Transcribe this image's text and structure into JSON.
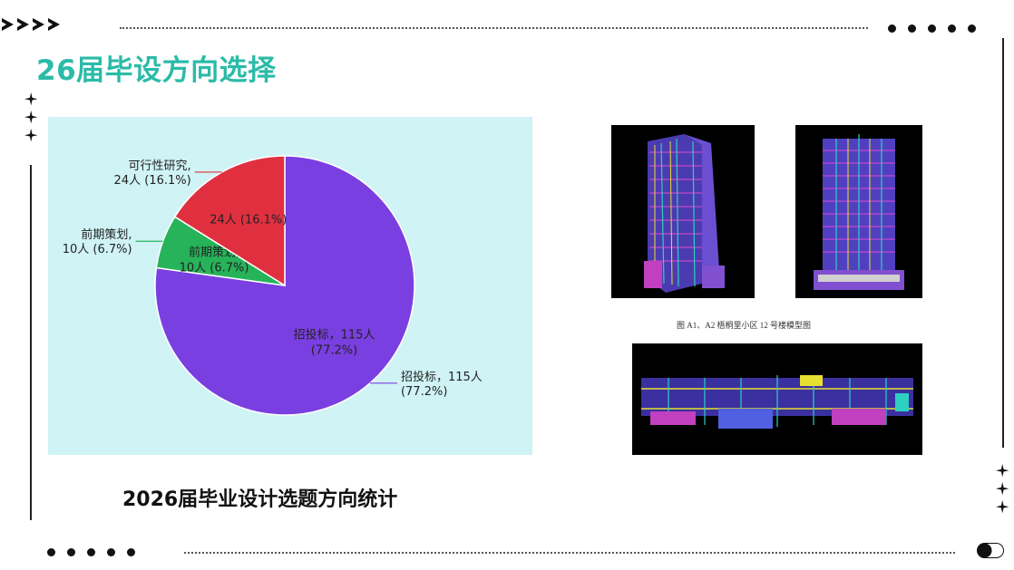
{
  "slide_title": "26届毕设方向选择",
  "chart_caption": "2026届毕业设计选题方向统计",
  "image_caption": "图 A1、A2 梧桐里小区 12 号楼模型图",
  "colors": {
    "accent": "#2bbba8",
    "chart_bg": "#d0f3f5"
  },
  "chart_data": {
    "type": "pie",
    "title": "",
    "slices": [
      {
        "name": "招投标",
        "value": 115,
        "percent": 77.2,
        "color": "#7a3fe0",
        "inner_line1": "招投标，115人",
        "inner_line2": "(77.2%)",
        "outer_line1": "招投标，115人",
        "outer_line2": "(77.2%)"
      },
      {
        "name": "前期策划",
        "value": 10,
        "percent": 6.7,
        "color": "#27b35a",
        "inner_line1": "前期策划,",
        "inner_line2": "10人 (6.7%)",
        "outer_line1": "前期策划,",
        "outer_line2": "10人 (6.7%)"
      },
      {
        "name": "可行性研究",
        "value": 24,
        "percent": 16.1,
        "color": "#e03040",
        "inner_line1": "24人 (16.1%)",
        "inner_line2": "",
        "outer_line1": "可行性研究,",
        "outer_line2": "24人 (16.1%)"
      }
    ]
  }
}
